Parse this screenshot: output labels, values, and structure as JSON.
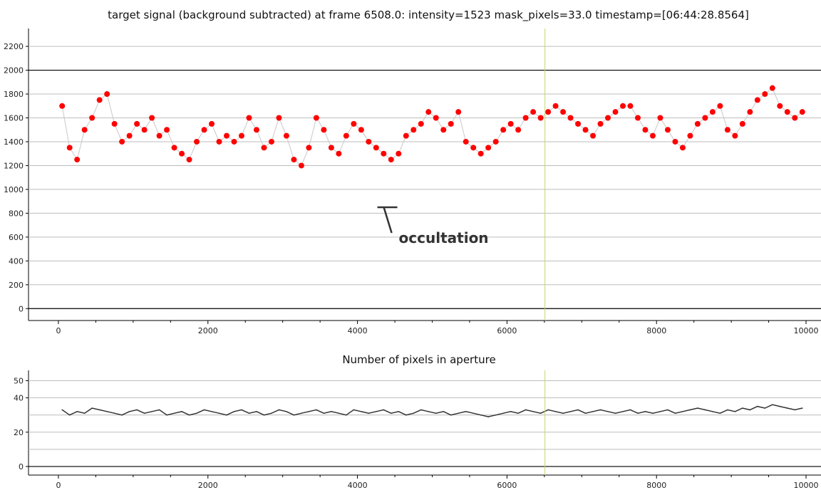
{
  "chart_data": [
    {
      "type": "scatter",
      "title": "target signal (background subtracted) at frame 6508.0: intensity=1523 mask_pixels=33.0 timestamp=[06:44:28.8564]",
      "xlabel": "",
      "ylabel": "",
      "xlim": [
        -400,
        10200
      ],
      "ylim": [
        -100,
        2350
      ],
      "x_ticks": [
        0,
        2000,
        4000,
        6000,
        8000,
        10000
      ],
      "y_ticks": [
        0,
        200,
        400,
        600,
        800,
        1000,
        1200,
        1400,
        1600,
        1800,
        2000,
        2200
      ],
      "grid": true,
      "reference_lines": {
        "y": [
          0,
          2000
        ],
        "x_cursor": 6508
      },
      "series": [
        {
          "marker_color": "#ff0000",
          "line_color": "#c8c8c8",
          "x": [
            50,
            150,
            250,
            350,
            450,
            550,
            650,
            750,
            850,
            950,
            1050,
            1150,
            1250,
            1350,
            1450,
            1550,
            1650,
            1750,
            1850,
            1950,
            2050,
            2150,
            2250,
            2350,
            2450,
            2550,
            2650,
            2750,
            2850,
            2950,
            3050,
            3150,
            3250,
            3350,
            3450,
            3550,
            3650,
            3750,
            3850,
            3950,
            4050,
            4150,
            4250,
            4350,
            4450,
            4550,
            4650,
            4750,
            4850,
            4950,
            5050,
            5150,
            5250,
            5350,
            5450,
            5550,
            5650,
            5750,
            5850,
            5950,
            6050,
            6150,
            6250,
            6350,
            6450,
            6550,
            6650,
            6750,
            6850,
            6950,
            7050,
            7150,
            7250,
            7350,
            7450,
            7550,
            7650,
            7750,
            7850,
            7950,
            8050,
            8150,
            8250,
            8350,
            8450,
            8550,
            8650,
            8750,
            8850,
            8950,
            9050,
            9150,
            9250,
            9350,
            9450,
            9550,
            9650,
            9750,
            9850,
            9950
          ],
          "y": [
            1700,
            1350,
            1250,
            1500,
            1600,
            1750,
            1800,
            1550,
            1400,
            1450,
            1550,
            1500,
            1600,
            1450,
            1500,
            1350,
            1300,
            1250,
            1400,
            1500,
            1550,
            1400,
            1450,
            1400,
            1450,
            1600,
            1500,
            1350,
            1400,
            1600,
            1450,
            1250,
            1200,
            1350,
            1600,
            1500,
            1350,
            1300,
            1450,
            1550,
            1500,
            1400,
            1350,
            1300,
            1250,
            1300,
            1450,
            1500,
            1550,
            1650,
            1600,
            1500,
            1550,
            1650,
            1400,
            1350,
            1300,
            1350,
            1400,
            1500,
            1550,
            1500,
            1600,
            1650,
            1600,
            1650,
            1700,
            1650,
            1600,
            1550,
            1500,
            1450,
            1550,
            1600,
            1650,
            1700,
            1700,
            1600,
            1500,
            1450,
            1600,
            1500,
            1400,
            1350,
            1450,
            1550,
            1600,
            1650,
            1700,
            1500,
            1450,
            1550,
            1650,
            1750,
            1800,
            1850,
            1700,
            1650,
            1600,
            1650
          ]
        }
      ],
      "annotations": [
        {
          "text": "occultation",
          "x": 4400,
          "y": 850
        }
      ]
    },
    {
      "type": "line",
      "title": "Number of pixels in aperture",
      "xlabel": "",
      "ylabel": "",
      "xlim": [
        -400,
        10200
      ],
      "ylim": [
        -5,
        56
      ],
      "x_ticks": [
        0,
        2000,
        4000,
        6000,
        8000,
        10000
      ],
      "y_ticks": [
        0,
        20,
        40
      ],
      "y_tick_labels_visible": [
        "0",
        "20",
        "40",
        "50"
      ],
      "grid": true,
      "reference_lines": {
        "y": [
          0
        ],
        "x_cursor": 6508
      },
      "series": [
        {
          "line_color": "#333333",
          "x": [
            50,
            150,
            250,
            350,
            450,
            550,
            650,
            750,
            850,
            950,
            1050,
            1150,
            1250,
            1350,
            1450,
            1550,
            1650,
            1750,
            1850,
            1950,
            2050,
            2150,
            2250,
            2350,
            2450,
            2550,
            2650,
            2750,
            2850,
            2950,
            3050,
            3150,
            3250,
            3350,
            3450,
            3550,
            3650,
            3750,
            3850,
            3950,
            4050,
            4150,
            4250,
            4350,
            4450,
            4550,
            4650,
            4750,
            4850,
            4950,
            5050,
            5150,
            5250,
            5350,
            5450,
            5550,
            5650,
            5750,
            5850,
            5950,
            6050,
            6150,
            6250,
            6350,
            6450,
            6550,
            6650,
            6750,
            6850,
            6950,
            7050,
            7150,
            7250,
            7350,
            7450,
            7550,
            7650,
            7750,
            7850,
            7950,
            8050,
            8150,
            8250,
            8350,
            8450,
            8550,
            8650,
            8750,
            8850,
            8950,
            9050,
            9150,
            9250,
            9350,
            9450,
            9550,
            9650,
            9750,
            9850,
            9950
          ],
          "y": [
            33,
            30,
            32,
            31,
            34,
            33,
            32,
            31,
            30,
            32,
            33,
            31,
            32,
            33,
            30,
            31,
            32,
            30,
            31,
            33,
            32,
            31,
            30,
            32,
            33,
            31,
            32,
            30,
            31,
            33,
            32,
            30,
            31,
            32,
            33,
            31,
            32,
            31,
            30,
            33,
            32,
            31,
            32,
            33,
            31,
            32,
            30,
            31,
            33,
            32,
            31,
            32,
            30,
            31,
            32,
            31,
            30,
            29,
            30,
            31,
            32,
            31,
            33,
            32,
            31,
            33,
            32,
            31,
            32,
            33,
            31,
            32,
            33,
            32,
            31,
            32,
            33,
            31,
            32,
            31,
            32,
            33,
            31,
            32,
            33,
            34,
            33,
            32,
            31,
            33,
            32,
            34,
            33,
            35,
            34,
            36,
            35,
            34,
            33,
            34
          ]
        }
      ]
    }
  ]
}
